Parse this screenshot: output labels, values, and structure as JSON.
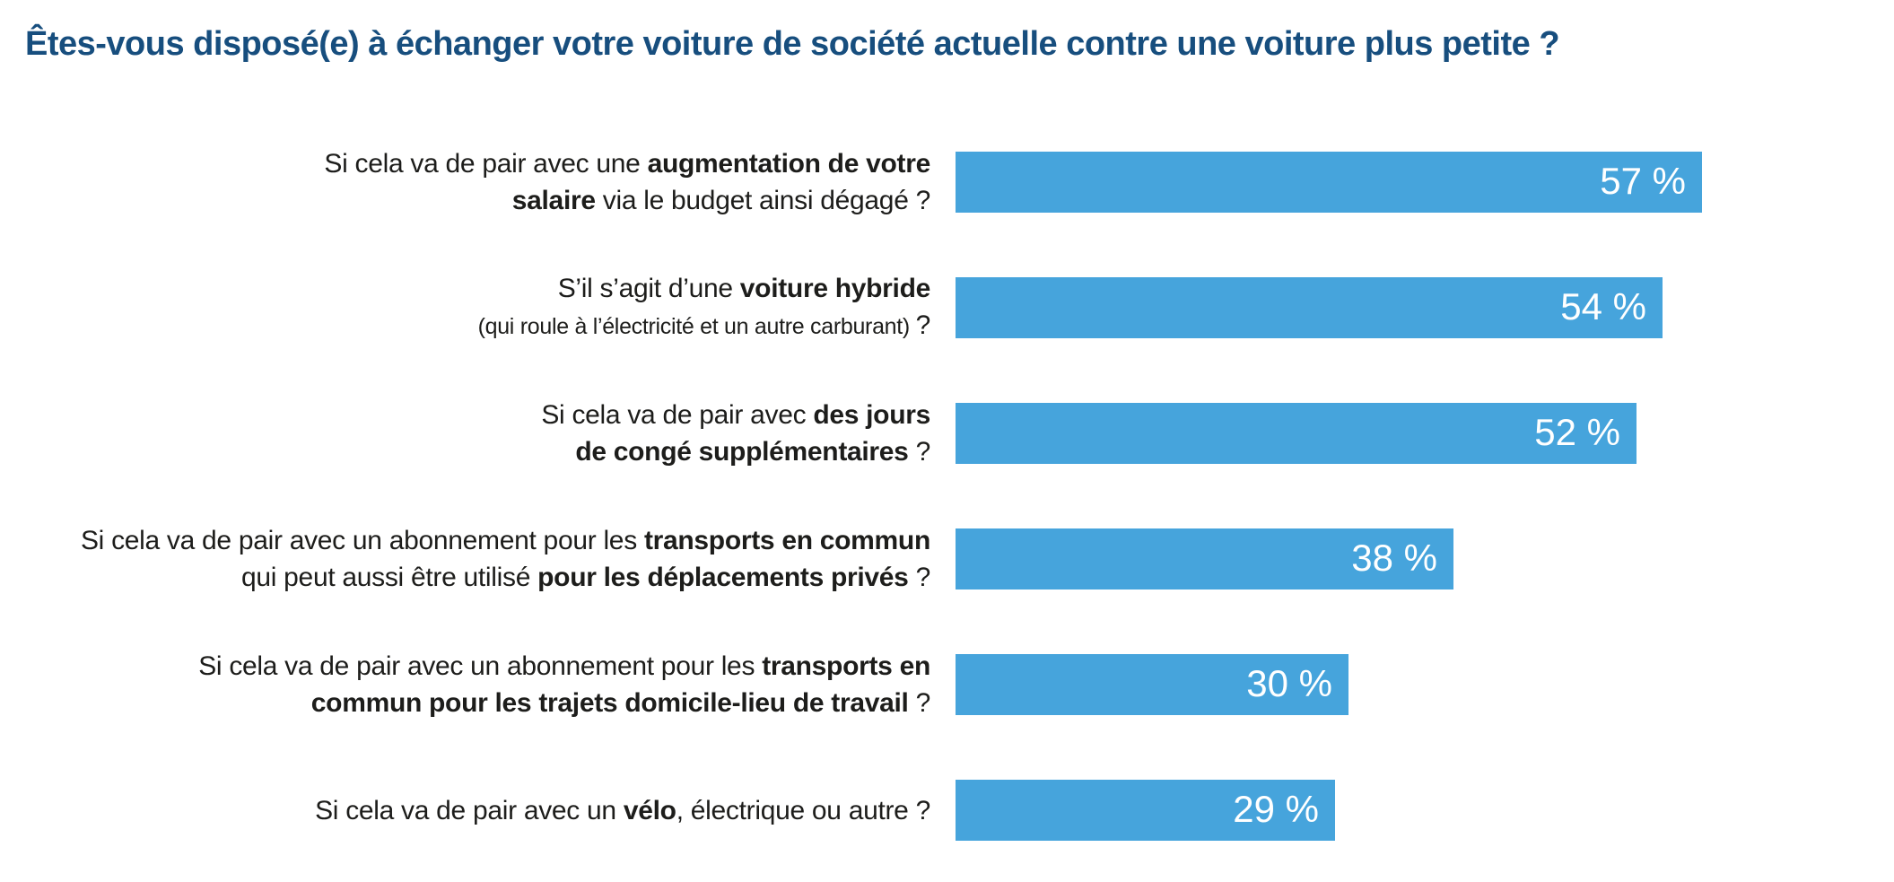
{
  "chart_data": {
    "type": "bar",
    "orientation": "horizontal",
    "title": "Êtes-vous disposé(e) à échanger votre voiture de société actuelle contre une voiture plus petite ?",
    "title_color": "#174E7E",
    "bar_color": "#46A4DC",
    "label_color": "#1D1D1B",
    "value_label_color": "#FFFFFF",
    "grid": false,
    "legend": false,
    "axis_visible": false,
    "value_labels_position": "inside-end",
    "scale_max": 57,
    "value_suffix": " %",
    "values": [
      57,
      54,
      52,
      38,
      30,
      29
    ],
    "categories": [
      {
        "value": 57,
        "value_label": "57 %",
        "lines": [
          {
            "segments": [
              {
                "text": "Si cela va de pair avec une ",
                "bold": false
              },
              {
                "text": "augmentation de votre",
                "bold": true
              }
            ]
          },
          {
            "segments": [
              {
                "text": "salaire",
                "bold": true
              },
              {
                "text": " via le budget ainsi dégagé ?",
                "bold": false
              }
            ]
          }
        ]
      },
      {
        "value": 54,
        "value_label": "54 %",
        "lines": [
          {
            "segments": [
              {
                "text": "S’il s’agit d’une ",
                "bold": false
              },
              {
                "text": "voiture hybride",
                "bold": true
              }
            ]
          },
          {
            "segments": [
              {
                "text": "(qui roule à l’électricité et un autre carburant) ",
                "bold": false,
                "small": true
              },
              {
                "text": "?",
                "bold": false
              }
            ]
          }
        ]
      },
      {
        "value": 52,
        "value_label": "52 %",
        "lines": [
          {
            "segments": [
              {
                "text": "Si cela va de pair avec ",
                "bold": false
              },
              {
                "text": "des jours",
                "bold": true
              }
            ]
          },
          {
            "segments": [
              {
                "text": "de congé supplémentaires",
                "bold": true
              },
              {
                "text": " ?",
                "bold": false
              }
            ]
          }
        ]
      },
      {
        "value": 38,
        "value_label": "38 %",
        "lines": [
          {
            "segments": [
              {
                "text": "Si cela va de pair avec un abonnement pour les ",
                "bold": false
              },
              {
                "text": "transports en commun",
                "bold": true
              }
            ]
          },
          {
            "segments": [
              {
                "text": "qui peut aussi être utilisé ",
                "bold": false
              },
              {
                "text": "pour les déplacements privés",
                "bold": true
              },
              {
                "text": " ?",
                "bold": false
              }
            ]
          }
        ]
      },
      {
        "value": 30,
        "value_label": "30 %",
        "lines": [
          {
            "segments": [
              {
                "text": "Si cela va de pair avec un abonnement pour les ",
                "bold": false
              },
              {
                "text": "transports en",
                "bold": true
              }
            ]
          },
          {
            "segments": [
              {
                "text": "commun pour les trajets domicile-lieu de travail",
                "bold": true
              },
              {
                "text": " ?",
                "bold": false
              }
            ]
          }
        ]
      },
      {
        "value": 29,
        "value_label": "29 %",
        "lines": [
          {
            "segments": [
              {
                "text": "Si cela va de pair avec un ",
                "bold": false
              },
              {
                "text": "vélo",
                "bold": true
              },
              {
                "text": ", électrique ou autre ?",
                "bold": false
              }
            ]
          }
        ]
      }
    ]
  }
}
